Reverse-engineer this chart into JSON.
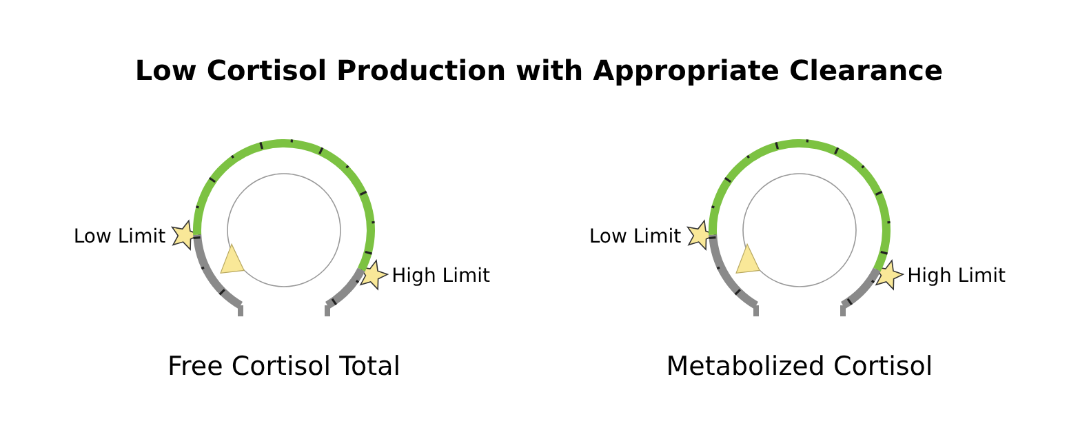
{
  "chart_data": [
    {
      "type": "donut",
      "title": "Low Cortisol Production with Appropriate Clearance",
      "xlabel": "Free Cortisol Total",
      "categories": [
        null,
        null,
        null
      ],
      "values": [
        19,
        70,
        11
      ],
      "colors": [
        "#8a8a8a",
        "#7cc242",
        "#8a8a8a"
      ],
      "annotations": [
        "Low Limit",
        "High Limit"
      ]
    },
    {
      "type": "donut",
      "xlabel": "Metabolized Cortisol",
      "categories": [
        null,
        null,
        null
      ],
      "values": [
        19,
        70,
        11
      ],
      "colors": [
        "#8a8a8a",
        "#7cc242",
        "#8a8a8a"
      ],
      "annotations": [
        "Low Limit",
        "High Limit"
      ]
    }
  ]
}
